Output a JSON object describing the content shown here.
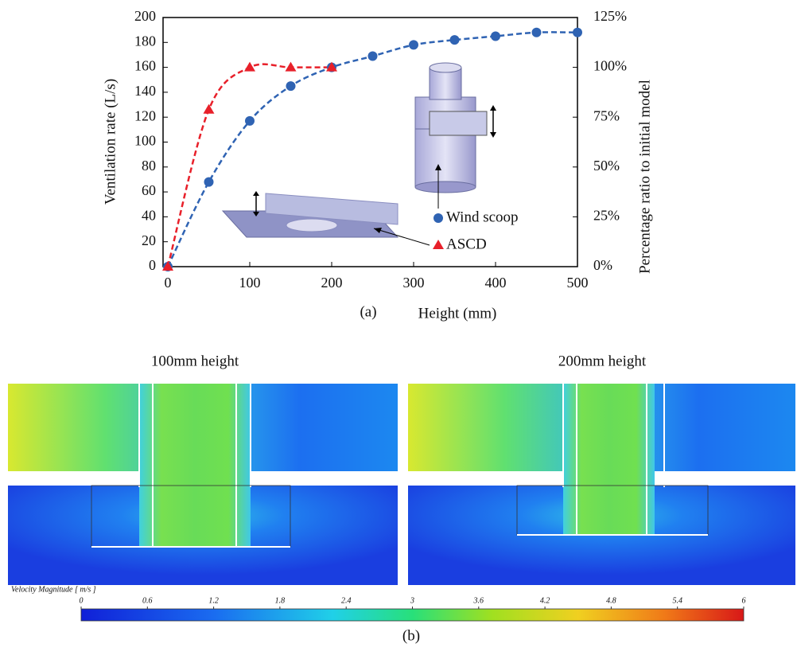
{
  "chart_data": {
    "type": "line",
    "caption": "(a)",
    "xlabel": "Height (mm)",
    "ylabel": "Ventilation rate (L/s)",
    "y2label": "Percentage ratio to initial model",
    "xlim": [
      0,
      500
    ],
    "xticks": [
      0,
      100,
      200,
      300,
      400,
      500
    ],
    "ylim": [
      0,
      200
    ],
    "yticks": [
      0,
      20,
      40,
      60,
      80,
      100,
      120,
      140,
      160,
      180,
      200
    ],
    "y2lim": [
      0,
      125
    ],
    "y2ticks": [
      {
        "value": 0,
        "label": "0%"
      },
      {
        "value": 25,
        "label": "25%"
      },
      {
        "value": 50,
        "label": "50%"
      },
      {
        "value": 75,
        "label": "75%"
      },
      {
        "value": 100,
        "label": "100%"
      },
      {
        "value": 125,
        "label": "125%"
      }
    ],
    "legend": "lower right",
    "line_style": "dashed",
    "series": [
      {
        "name": "Wind scoop",
        "color": "#2f63b3",
        "marker": "circle",
        "x": [
          0,
          50,
          100,
          150,
          200,
          250,
          300,
          350,
          400,
          450,
          500
        ],
        "values": [
          0,
          68,
          117,
          145,
          160,
          169,
          178,
          182,
          185,
          188,
          188
        ]
      },
      {
        "name": "ASCD",
        "color": "#e8202a",
        "marker": "triangle",
        "x": [
          0,
          50,
          100,
          150,
          200
        ],
        "values": [
          0,
          126,
          160,
          160,
          160
        ]
      }
    ]
  },
  "figure_b": {
    "caption": "(b)",
    "panels": [
      {
        "title": "100mm height"
      },
      {
        "title": "200mm height"
      }
    ],
    "colorbar": {
      "label": "Velocity Magnitude [ m/s ]",
      "lim": [
        0,
        6
      ],
      "ticks": [
        0,
        0.6,
        1.2,
        1.8,
        2.4,
        3,
        3.6,
        4.2,
        4.8,
        5.4,
        6
      ]
    }
  }
}
